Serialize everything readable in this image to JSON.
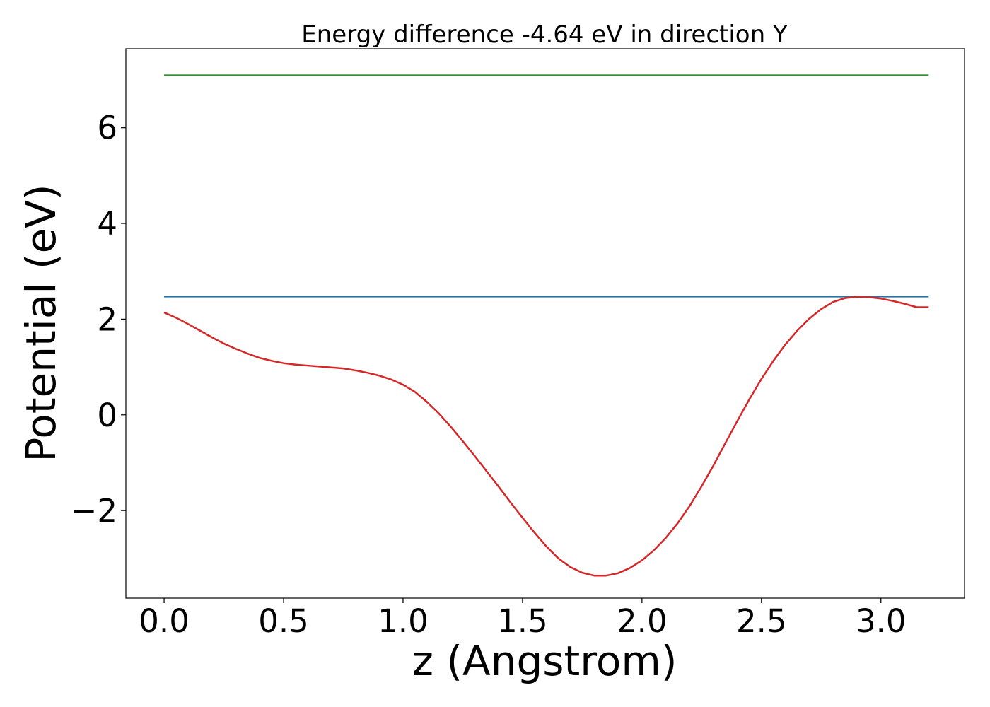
{
  "chart_data": {
    "type": "line",
    "title": "Energy difference -4.64 eV in direction Y",
    "xlabel": "z (Angstrom)",
    "ylabel": "Potential (eV)",
    "xlim": [
      -0.16,
      3.35
    ],
    "ylim": [
      -3.83,
      7.65
    ],
    "grid": false,
    "x_ticks": [
      0.0,
      0.5,
      1.0,
      1.5,
      2.0,
      2.5,
      3.0
    ],
    "x_tick_labels": [
      "0.0",
      "0.5",
      "1.0",
      "1.5",
      "2.0",
      "2.5",
      "3.0"
    ],
    "y_ticks": [
      -2,
      0,
      2,
      4,
      6
    ],
    "y_tick_labels": [
      "−2",
      "0",
      "2",
      "4",
      "6"
    ],
    "series": [
      {
        "color": "#2ca02c",
        "x": [
          0.0,
          3.2
        ],
        "y": [
          7.1,
          7.1
        ]
      },
      {
        "color": "#1f77b4",
        "x": [
          0.0,
          3.2
        ],
        "y": [
          2.47,
          2.47
        ]
      },
      {
        "color": "#d62728",
        "x": [
          0.0,
          0.05,
          0.1,
          0.15,
          0.2,
          0.25,
          0.3,
          0.35,
          0.4,
          0.45,
          0.5,
          0.55,
          0.6,
          0.65,
          0.7,
          0.75,
          0.8,
          0.85,
          0.9,
          0.95,
          1.0,
          1.05,
          1.1,
          1.15,
          1.2,
          1.25,
          1.3,
          1.35,
          1.4,
          1.45,
          1.5,
          1.55,
          1.6,
          1.65,
          1.7,
          1.75,
          1.8,
          1.85,
          1.9,
          1.95,
          2.0,
          2.05,
          2.1,
          2.15,
          2.2,
          2.25,
          2.3,
          2.35,
          2.4,
          2.45,
          2.5,
          2.55,
          2.6,
          2.65,
          2.7,
          2.75,
          2.8,
          2.85,
          2.9,
          2.95,
          3.0,
          3.05,
          3.1,
          3.15,
          3.2
        ],
        "y": [
          2.14,
          2.03,
          1.9,
          1.76,
          1.62,
          1.49,
          1.38,
          1.28,
          1.19,
          1.13,
          1.08,
          1.05,
          1.03,
          1.01,
          0.99,
          0.97,
          0.93,
          0.88,
          0.82,
          0.74,
          0.63,
          0.48,
          0.27,
          0.03,
          -0.25,
          -0.55,
          -0.86,
          -1.18,
          -1.5,
          -1.83,
          -2.15,
          -2.46,
          -2.75,
          -3.0,
          -3.18,
          -3.3,
          -3.36,
          -3.36,
          -3.31,
          -3.2,
          -3.04,
          -2.83,
          -2.57,
          -2.26,
          -1.9,
          -1.49,
          -1.05,
          -0.58,
          -0.12,
          0.33,
          0.75,
          1.13,
          1.47,
          1.76,
          2.01,
          2.21,
          2.36,
          2.44,
          2.47,
          2.46,
          2.43,
          2.38,
          2.32,
          2.25,
          2.25
        ]
      }
    ]
  }
}
